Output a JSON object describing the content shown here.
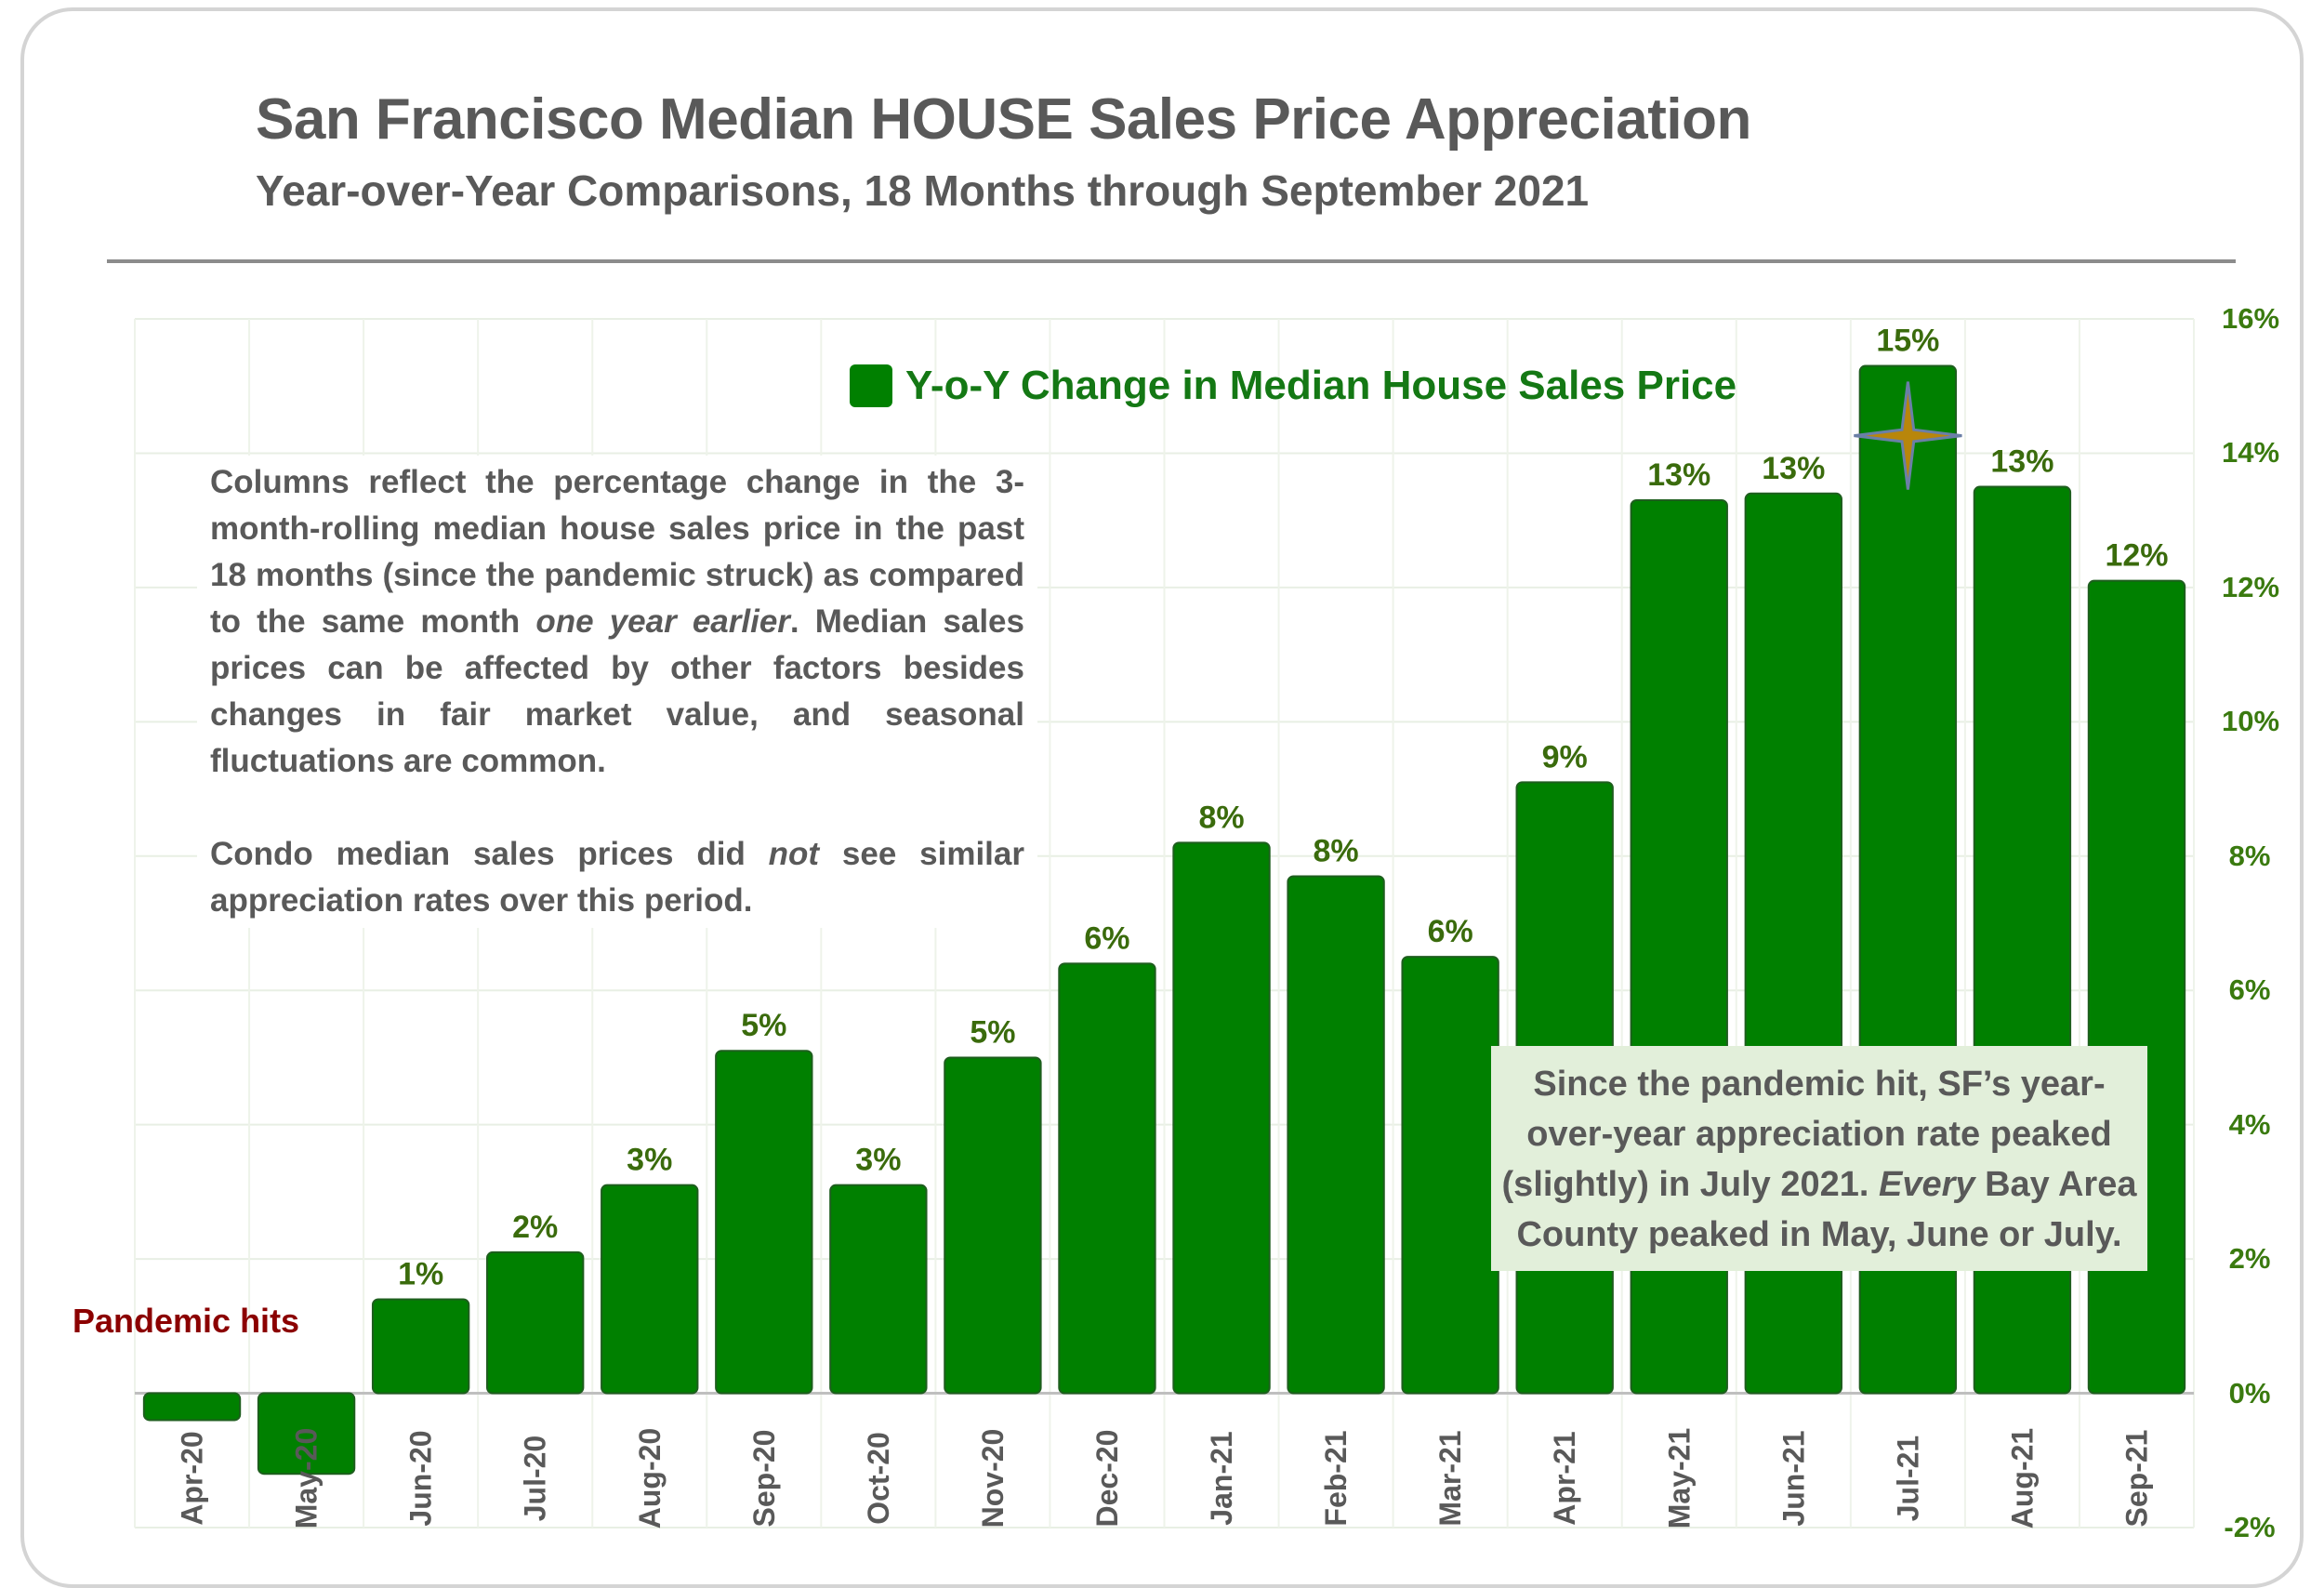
{
  "title": "San Francisco Median HOUSE Sales Price Appreciation",
  "subtitle": "Year-over-Year Comparisons, 18 Months through September 2021",
  "legend": {
    "label": "Y-o-Y Change in Median House Sales Price",
    "color": "#008000"
  },
  "note": {
    "p1_a": "Columns reflect the percentage change in the 3-month-rolling median house sales price in the past 18 months (since the pandemic struck) as compared to the same month ",
    "p1_em": "one year earlier",
    "p1_b": ". Median sales prices can be affected by other factors besides changes in fair market value, and seasonal fluctuations are common.",
    "p2_a": "Condo median sales prices did ",
    "p2_em": "not",
    "p2_b": " see similar appreciation rates over this period."
  },
  "callout": {
    "a": "Since the pandemic hit, SF’s year-over-year appreciation rate peaked (slightly) in July 2021. ",
    "em": "Every",
    "b": " Bay Area County peaked in May, June or July."
  },
  "annotation_pandemic": "Pandemic hits",
  "colors": {
    "bar": "#008000",
    "data_label": "#3a6b0c",
    "axis_label": "#3a7a0f",
    "pandemic": "#8b0000",
    "callout_bg": "#e2efda",
    "star": "#b8860b"
  },
  "chart_data": {
    "type": "bar",
    "categories": [
      "Apr-20",
      "May-20",
      "Jun-20",
      "Jul-20",
      "Aug-20",
      "Sep-20",
      "Oct-20",
      "Nov-20",
      "Dec-20",
      "Jan-21",
      "Feb-21",
      "Mar-21",
      "Apr-21",
      "May-21",
      "Jun-21",
      "Jul-21",
      "Aug-21",
      "Sep-21"
    ],
    "series": [
      {
        "name": "Y-o-Y Change in Median House Sales Price",
        "values": [
          -0.4,
          -1.2,
          1.4,
          2.1,
          3.1,
          5.1,
          3.1,
          5.0,
          6.4,
          8.2,
          7.7,
          6.5,
          9.1,
          13.3,
          13.4,
          15.3,
          13.5,
          12.1
        ],
        "labels": [
          "",
          "",
          "1%",
          "2%",
          "3%",
          "5%",
          "3%",
          "5%",
          "6%",
          "8%",
          "8%",
          "6%",
          "9%",
          "13%",
          "13%",
          "15%",
          "13%",
          "12%"
        ]
      }
    ],
    "y_axis": {
      "position": "right",
      "ylim": [
        -2,
        16
      ],
      "ticks": [
        -2,
        0,
        2,
        4,
        6,
        8,
        10,
        12,
        14,
        16
      ],
      "tick_labels": [
        "-2%",
        "0%",
        "2%",
        "4%",
        "6%",
        "8%",
        "10%",
        "12%",
        "14%",
        "16%"
      ]
    },
    "grid": true,
    "highlight_category": "Jul-21"
  }
}
